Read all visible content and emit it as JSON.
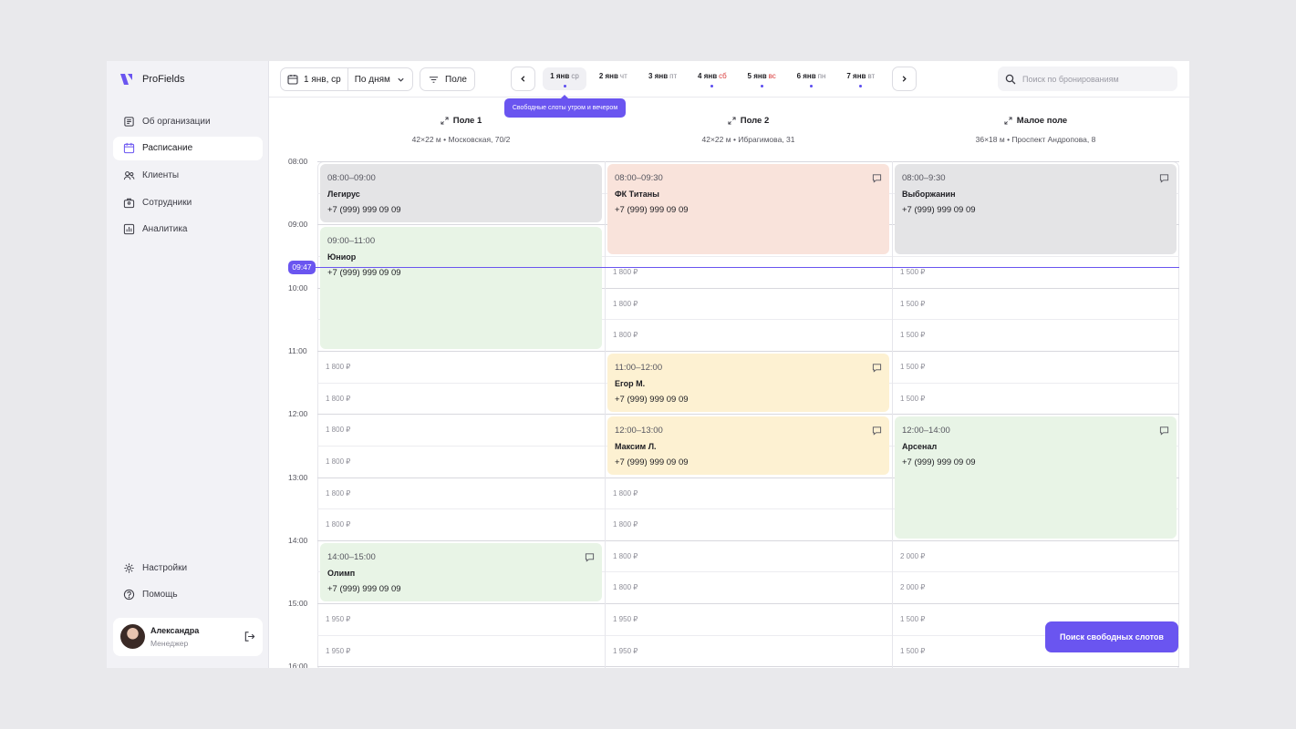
{
  "brand": {
    "name": "ProFields",
    "accent": "#6a55f0"
  },
  "sidebar": {
    "items": [
      {
        "label": "Об организации",
        "icon": "organization-icon"
      },
      {
        "label": "Расписание",
        "icon": "calendar-icon",
        "active": true
      },
      {
        "label": "Клиенты",
        "icon": "clients-icon"
      },
      {
        "label": "Сотрудники",
        "icon": "staff-icon"
      },
      {
        "label": "Аналитика",
        "icon": "analytics-icon"
      }
    ],
    "bottom_items": [
      {
        "label": "Настройки",
        "icon": "gear-icon"
      },
      {
        "label": "Помощь",
        "icon": "help-icon"
      }
    ],
    "user": {
      "name": "Александра",
      "role": "Менеджер"
    }
  },
  "toolbar": {
    "date_label": "1 янв, ср",
    "view_mode": "По дням",
    "filter_label": "Поле",
    "days": [
      {
        "date": "1 янв",
        "wd": "ср",
        "dot": true,
        "active": true,
        "weekend": false
      },
      {
        "date": "2 янв",
        "wd": "чт",
        "dot": false,
        "active": false,
        "weekend": false
      },
      {
        "date": "3 янв",
        "wd": "пт",
        "dot": false,
        "active": false,
        "weekend": false
      },
      {
        "date": "4 янв",
        "wd": "сб",
        "dot": true,
        "active": false,
        "weekend": true
      },
      {
        "date": "5 янв",
        "wd": "вс",
        "dot": true,
        "active": false,
        "weekend": true
      },
      {
        "date": "6 янв",
        "wd": "пн",
        "dot": true,
        "active": false,
        "weekend": false
      },
      {
        "date": "7 янв",
        "wd": "вт",
        "dot": true,
        "active": false,
        "weekend": false
      }
    ],
    "tooltip": "Свободные слоты утром и вечером",
    "search_placeholder": "Поиск по бронированиям"
  },
  "fields": [
    {
      "name": "Поле 1",
      "info": "42×22 м • Московская, 70/2"
    },
    {
      "name": "Поле 2",
      "info": "42×22 м • Ибрагимова, 31"
    },
    {
      "name": "Малое поле",
      "info": "36×18 м • Проспект Андропова, 8"
    }
  ],
  "hours": [
    "08:00",
    "09:00",
    "10:00",
    "11:00",
    "12:00",
    "13:00",
    "14:00",
    "15:00",
    "16:00"
  ],
  "now": "09:47",
  "bookings": [
    {
      "field": 0,
      "start": 8,
      "end": 9,
      "time": "08:00–09:00",
      "name": "Легирус",
      "phone": "+7 (999) 999 09 09",
      "color": "gray",
      "comment": false
    },
    {
      "field": 0,
      "start": 9,
      "end": 11,
      "time": "09:00–11:00",
      "name": "Юниор",
      "phone": "+7 (999) 999 09 09",
      "color": "green",
      "comment": false
    },
    {
      "field": 0,
      "start": 14,
      "end": 15,
      "time": "14:00–15:00",
      "name": "Олимп",
      "phone": "+7 (999) 999 09 09",
      "color": "green",
      "comment": true
    },
    {
      "field": 1,
      "start": 8,
      "end": 9.5,
      "time": "08:00–09:30",
      "name": "ФК Титаны",
      "phone": "+7 (999) 999 09 09",
      "color": "peach",
      "comment": true
    },
    {
      "field": 1,
      "start": 11,
      "end": 12,
      "time": "11:00–12:00",
      "name": "Егор М.",
      "phone": "+7 (999) 999 09 09",
      "color": "yellow",
      "comment": true
    },
    {
      "field": 1,
      "start": 12,
      "end": 13,
      "time": "12:00–13:00",
      "name": "Максим Л.",
      "phone": "+7 (999) 999 09 09",
      "color": "yellow",
      "comment": true
    },
    {
      "field": 2,
      "start": 8,
      "end": 9.5,
      "time": "08:00–9:30",
      "name": "Выборжанин",
      "phone": "+7 (999) 999 09 09",
      "color": "gray",
      "comment": true
    },
    {
      "field": 2,
      "start": 12,
      "end": 14,
      "time": "12:00–14:00",
      "name": "Арсенал",
      "phone": "+7 (999) 999 09 09",
      "color": "green",
      "comment": true
    }
  ],
  "free_slots": [
    {
      "field": 1,
      "start": 9.5,
      "price": "1 800 ₽"
    },
    {
      "field": 1,
      "start": 10,
      "price": "1 800 ₽"
    },
    {
      "field": 1,
      "start": 10.5,
      "price": "1 800 ₽"
    },
    {
      "field": 2,
      "start": 9.5,
      "price": "1 500 ₽"
    },
    {
      "field": 2,
      "start": 10,
      "price": "1 500 ₽"
    },
    {
      "field": 2,
      "start": 10.5,
      "price": "1 500 ₽"
    },
    {
      "field": 0,
      "start": 11,
      "price": "1 800 ₽"
    },
    {
      "field": 0,
      "start": 11.5,
      "price": "1 800 ₽"
    },
    {
      "field": 2,
      "start": 11,
      "price": "1 500 ₽"
    },
    {
      "field": 2,
      "start": 11.5,
      "price": "1 500 ₽"
    },
    {
      "field": 0,
      "start": 12,
      "price": "1 800 ₽"
    },
    {
      "field": 0,
      "start": 12.5,
      "price": "1 800 ₽"
    },
    {
      "field": 0,
      "start": 13,
      "price": "1 800 ₽"
    },
    {
      "field": 0,
      "start": 13.5,
      "price": "1 800 ₽"
    },
    {
      "field": 1,
      "start": 13,
      "price": "1 800 ₽"
    },
    {
      "field": 1,
      "start": 13.5,
      "price": "1 800 ₽"
    },
    {
      "field": 1,
      "start": 14,
      "price": "1 800 ₽"
    },
    {
      "field": 1,
      "start": 14.5,
      "price": "1 800 ₽"
    },
    {
      "field": 2,
      "start": 14,
      "price": "2 000 ₽"
    },
    {
      "field": 2,
      "start": 14.5,
      "price": "2 000 ₽"
    },
    {
      "field": 0,
      "start": 15,
      "price": "1 950 ₽"
    },
    {
      "field": 0,
      "start": 15.5,
      "price": "1 950 ₽"
    },
    {
      "field": 1,
      "start": 15,
      "price": "1 950 ₽"
    },
    {
      "field": 1,
      "start": 15.5,
      "price": "1 950 ₽"
    },
    {
      "field": 2,
      "start": 15,
      "price": "1 500 ₽"
    },
    {
      "field": 2,
      "start": 15.5,
      "price": "1 500 ₽"
    }
  ],
  "cta_label": "Поиск свободных слотов",
  "colors": {
    "gray": "#e4e4e6",
    "green": "#e8f4e6",
    "peach": "#f9e3db",
    "yellow": "#fdf1d2"
  }
}
